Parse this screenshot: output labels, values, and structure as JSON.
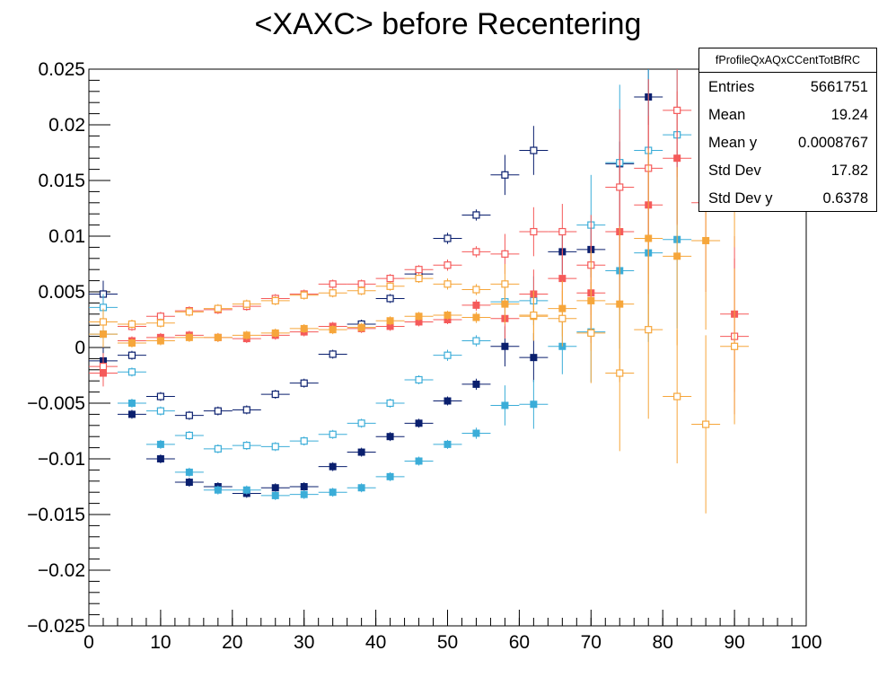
{
  "chart_data": {
    "type": "scatter",
    "title": "<XAXC> before Recentering",
    "xlabel": "",
    "ylabel": "",
    "xlim": [
      0,
      100
    ],
    "ylim": [
      -0.025,
      0.025
    ],
    "x_ticks": [
      "0",
      "10",
      "20",
      "30",
      "40",
      "50",
      "60",
      "70",
      "80",
      "90",
      "100"
    ],
    "y_ticks": [
      "−0.025",
      "−0.02",
      "−0.015",
      "−0.01",
      "−0.005",
      "0",
      "0.005",
      "0.01",
      "0.015",
      "0.02",
      "0.025"
    ],
    "x_err": 2,
    "grid": false,
    "series": [
      {
        "color": "#0a1f6e",
        "marker": "filled-square",
        "x": [
          2,
          6,
          10,
          14,
          18,
          22,
          26,
          30,
          34,
          38,
          42,
          46,
          50,
          54,
          58,
          62,
          66,
          70,
          74,
          78,
          82,
          86,
          90
        ],
        "y": [
          -0.0012,
          -0.006,
          -0.01,
          -0.0121,
          -0.0125,
          -0.0131,
          -0.0126,
          -0.0125,
          -0.0107,
          -0.0094,
          -0.008,
          -0.0068,
          -0.0048,
          -0.0033,
          0.0001,
          -0.0009,
          0.0086,
          0.0088,
          0.0165,
          0.0225,
          null,
          null,
          0.0166
        ],
        "y_err": [
          0.0015,
          0.0004,
          0.0004,
          0.0004,
          0.0004,
          0.0004,
          0.0004,
          0.0004,
          0.0004,
          0.0004,
          0.0004,
          0.0004,
          0.0004,
          0.0005,
          0.0018,
          0.0022,
          0.002,
          0.0025,
          0.002,
          0.0025,
          null,
          null,
          0.004
        ]
      },
      {
        "color": "#0a1f6e",
        "marker": "open-square",
        "x": [
          2,
          6,
          10,
          14,
          18,
          22,
          26,
          30,
          34,
          38,
          42,
          46,
          50,
          54,
          58,
          62,
          66,
          70,
          74,
          78,
          82,
          86,
          90
        ],
        "y": [
          0.0048,
          -0.0007,
          -0.0044,
          -0.0061,
          -0.0057,
          -0.0056,
          -0.0042,
          -0.0032,
          -0.0006,
          0.0021,
          0.0044,
          0.0066,
          0.0098,
          0.0119,
          0.0155,
          0.0177,
          null,
          null,
          null,
          null,
          null,
          null,
          null
        ],
        "y_err": [
          0.0012,
          0.0004,
          0.0004,
          0.0004,
          0.0004,
          0.0004,
          0.0004,
          0.0004,
          0.0004,
          0.0004,
          0.0004,
          0.0004,
          0.0005,
          0.0005,
          0.0018,
          0.0022,
          null,
          null,
          null,
          null,
          null,
          null,
          null
        ]
      },
      {
        "color": "#3badd8",
        "marker": "filled-square",
        "x": [
          2,
          6,
          10,
          14,
          18,
          22,
          26,
          30,
          34,
          38,
          42,
          46,
          50,
          54,
          58,
          62,
          66,
          70,
          74,
          78,
          82,
          86,
          90
        ],
        "y": [
          0.0012,
          -0.005,
          -0.0087,
          -0.0112,
          -0.0128,
          -0.0128,
          -0.0133,
          -0.0132,
          -0.013,
          -0.0126,
          -0.0116,
          -0.0102,
          -0.0087,
          -0.0077,
          -0.0052,
          -0.0051,
          0.0001,
          0.0014,
          0.0069,
          0.0085,
          0.0097,
          null,
          null
        ],
        "y_err": [
          0.0012,
          0.0004,
          0.0004,
          0.0004,
          0.0004,
          0.0004,
          0.0004,
          0.0004,
          0.0004,
          0.0004,
          0.0004,
          0.0004,
          0.0004,
          0.0005,
          0.0018,
          0.0022,
          0.0025,
          0.0045,
          0.007,
          0.008,
          0.008,
          null,
          null
        ]
      },
      {
        "color": "#3badd8",
        "marker": "open-square",
        "x": [
          2,
          6,
          10,
          14,
          18,
          22,
          26,
          30,
          34,
          38,
          42,
          46,
          50,
          54,
          58,
          62,
          66,
          70,
          74,
          78,
          82,
          86,
          90
        ],
        "y": [
          0.0036,
          -0.0022,
          -0.0057,
          -0.0079,
          -0.0091,
          -0.0088,
          -0.0089,
          -0.0084,
          -0.0078,
          -0.0068,
          -0.005,
          -0.0029,
          -0.0007,
          0.0006,
          0.0041,
          0.0042,
          null,
          0.011,
          0.0166,
          0.0177,
          0.0191,
          null,
          null
        ],
        "y_err": [
          0.0012,
          0.0004,
          0.0004,
          0.0004,
          0.0004,
          0.0004,
          0.0004,
          0.0004,
          0.0004,
          0.0004,
          0.0004,
          0.0004,
          0.0005,
          0.0005,
          0.0018,
          0.0022,
          null,
          0.0045,
          0.007,
          0.008,
          0.008,
          null,
          null
        ]
      },
      {
        "color": "#f55a5a",
        "marker": "filled-square",
        "x": [
          2,
          6,
          10,
          14,
          18,
          22,
          26,
          30,
          34,
          38,
          42,
          46,
          50,
          54,
          58,
          62,
          66,
          70,
          74,
          78,
          82,
          86,
          90
        ],
        "y": [
          -0.0023,
          0.0006,
          0.0009,
          0.0011,
          0.0009,
          0.0008,
          0.0011,
          0.0014,
          0.0019,
          0.0017,
          0.0019,
          0.0023,
          0.0025,
          0.0038,
          0.0026,
          0.0048,
          0.0062,
          0.0049,
          0.0104,
          0.0128,
          0.017,
          0.013,
          0.003
        ],
        "y_err": [
          0.0012,
          0.0004,
          0.0004,
          0.0004,
          0.0004,
          0.0004,
          0.0004,
          0.0004,
          0.0004,
          0.0004,
          0.0004,
          0.0004,
          0.0004,
          0.0005,
          0.0018,
          0.0022,
          0.0025,
          0.0045,
          0.007,
          0.008,
          0.006,
          0.008,
          0.007
        ]
      },
      {
        "color": "#f55a5a",
        "marker": "open-square",
        "x": [
          2,
          6,
          10,
          14,
          18,
          22,
          26,
          30,
          34,
          38,
          42,
          46,
          50,
          54,
          58,
          62,
          66,
          70,
          74,
          78,
          82,
          86,
          90
        ],
        "y": [
          -0.0017,
          0.0019,
          0.0028,
          0.0033,
          0.0034,
          0.0037,
          0.0044,
          0.0048,
          0.0057,
          0.0057,
          0.0062,
          0.007,
          0.0074,
          0.0086,
          0.0084,
          0.0104,
          0.0104,
          0.0074,
          0.0144,
          0.0161,
          0.0213,
          null,
          0.001
        ],
        "y_err": [
          0.0012,
          0.0004,
          0.0004,
          0.0004,
          0.0004,
          0.0004,
          0.0004,
          0.0004,
          0.0004,
          0.0004,
          0.0004,
          0.0004,
          0.0005,
          0.0005,
          0.0018,
          0.0022,
          0.0025,
          0.0045,
          0.007,
          0.008,
          0.006,
          null,
          0.007
        ]
      },
      {
        "color": "#f6a63b",
        "marker": "filled-square",
        "x": [
          2,
          6,
          10,
          14,
          18,
          22,
          26,
          30,
          34,
          38,
          42,
          46,
          50,
          54,
          58,
          62,
          66,
          70,
          74,
          78,
          82,
          86,
          90
        ],
        "y": [
          0.0012,
          0.0004,
          0.0006,
          0.0009,
          0.0009,
          0.0011,
          0.0013,
          0.0017,
          0.0016,
          0.0018,
          0.0024,
          0.0028,
          0.0029,
          0.0027,
          0.0039,
          0.0028,
          0.0035,
          0.0042,
          0.0039,
          0.0098,
          0.0082,
          0.0096,
          0.017
        ],
        "y_err": [
          0.0012,
          0.0004,
          0.0004,
          0.0004,
          0.0004,
          0.0004,
          0.0004,
          0.0004,
          0.0004,
          0.0004,
          0.0004,
          0.0004,
          0.0004,
          0.0005,
          0.0018,
          0.0022,
          0.0025,
          0.0045,
          0.007,
          0.008,
          0.008,
          0.008,
          0.008
        ]
      },
      {
        "color": "#f6a63b",
        "marker": "open-square",
        "x": [
          2,
          6,
          10,
          14,
          18,
          22,
          26,
          30,
          34,
          38,
          42,
          46,
          50,
          54,
          58,
          62,
          66,
          70,
          74,
          78,
          82,
          86,
          90
        ],
        "y": [
          0.0023,
          0.0021,
          0.0022,
          0.0032,
          0.0035,
          0.0039,
          0.0042,
          0.0047,
          0.0049,
          0.0051,
          0.0055,
          0.0062,
          0.0057,
          0.0052,
          0.0057,
          0.0029,
          0.0026,
          0.0013,
          -0.0023,
          0.0016,
          -0.0044,
          -0.0069,
          0.0001
        ],
        "y_err": [
          0.0012,
          0.0004,
          0.0004,
          0.0004,
          0.0004,
          0.0004,
          0.0004,
          0.0004,
          0.0004,
          0.0004,
          0.0004,
          0.0004,
          0.0005,
          0.0005,
          0.0018,
          0.0022,
          0.0025,
          0.0045,
          0.007,
          0.008,
          0.006,
          0.008,
          0.007
        ]
      }
    ]
  },
  "stats_box": {
    "name": "fProfileQxAQxCCentTotBfRC",
    "rows": [
      {
        "label": "Entries",
        "value": "5661751"
      },
      {
        "label": "Mean",
        "value": "19.24"
      },
      {
        "label": "Mean y",
        "value": "0.0008767"
      },
      {
        "label": "Std Dev",
        "value": "17.82"
      },
      {
        "label": "Std Dev y",
        "value": "0.6378"
      }
    ]
  }
}
